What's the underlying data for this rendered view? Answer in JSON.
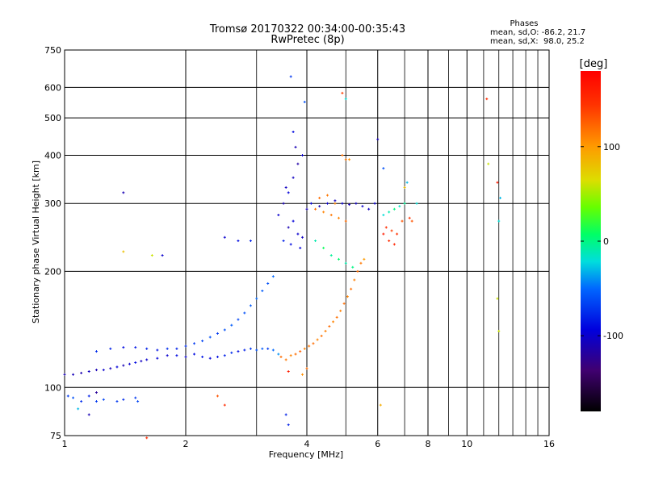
{
  "chart_data": {
    "type": "scatter",
    "title": "Tromsø 20170322 00:34:00-00:35:43",
    "subtitle": "RwPretec (8p)",
    "stats": {
      "heading": "Phases",
      "line1": "mean, sd,O: -86.2, 21.7",
      "line2": "mean, sd,X:  98.0, 25.2"
    },
    "xlabel": "Frequency [MHz]",
    "ylabel": "Stationary phase Virtual Height [km]",
    "x_scale": "log",
    "y_scale": "log",
    "xlim": [
      1,
      16
    ],
    "ylim": [
      75,
      750
    ],
    "xticks": [
      1,
      2,
      4,
      6,
      8,
      10,
      16
    ],
    "xtick_labels": [
      "1",
      "2",
      "4",
      "6",
      "8",
      "10",
      "16"
    ],
    "x_minor_ticks": [
      3,
      5,
      7,
      9,
      11,
      12,
      13,
      14,
      15
    ],
    "yticks": [
      75,
      100,
      200,
      300,
      400,
      500,
      600,
      750
    ],
    "ytick_labels": [
      "75",
      "100",
      "200",
      "300",
      "400",
      "500",
      "600",
      "750"
    ],
    "grid": true,
    "colorbar": {
      "label": "[deg]",
      "range": [
        -180,
        180
      ],
      "ticks": [
        100,
        0,
        -100
      ],
      "tick_labels": [
        "100",
        "0",
        "-100"
      ]
    },
    "series": [
      {
        "points": [
          [
            1.0,
            108,
            -110
          ],
          [
            1.05,
            108,
            -108
          ],
          [
            1.1,
            109,
            -112
          ],
          [
            1.15,
            110,
            -105
          ],
          [
            1.2,
            111,
            -110
          ],
          [
            1.25,
            111,
            -100
          ],
          [
            1.3,
            112,
            -108
          ],
          [
            1.35,
            113,
            -95
          ],
          [
            1.4,
            114,
            -110
          ],
          [
            1.45,
            115,
            -100
          ],
          [
            1.5,
            116,
            -90
          ],
          [
            1.55,
            117,
            -105
          ],
          [
            1.6,
            118,
            -100
          ],
          [
            1.7,
            119,
            -95
          ],
          [
            1.8,
            121,
            -100
          ],
          [
            1.9,
            121,
            -90
          ],
          [
            2.0,
            120,
            -100
          ],
          [
            2.1,
            122,
            -90
          ],
          [
            2.2,
            120,
            -85
          ],
          [
            2.3,
            119,
            -95
          ],
          [
            2.4,
            120,
            -88
          ],
          [
            2.5,
            121,
            -80
          ],
          [
            2.6,
            123,
            -75
          ],
          [
            2.7,
            124,
            -90
          ],
          [
            2.8,
            125,
            -80
          ],
          [
            2.9,
            126,
            -70
          ],
          [
            3.0,
            125,
            -60
          ],
          [
            3.1,
            126,
            -55
          ],
          [
            3.2,
            126,
            -70
          ],
          [
            3.3,
            125,
            -50
          ],
          [
            3.4,
            122,
            -40
          ],
          [
            1.2,
            124,
            -75
          ],
          [
            1.3,
            126,
            -80
          ],
          [
            1.4,
            127,
            -90
          ],
          [
            1.5,
            127,
            -85
          ],
          [
            1.6,
            126,
            -80
          ],
          [
            1.7,
            125,
            -85
          ],
          [
            1.8,
            126,
            -75
          ],
          [
            1.9,
            126,
            -80
          ],
          [
            2.0,
            128,
            -75
          ],
          [
            2.1,
            130,
            -70
          ],
          [
            2.2,
            132,
            -65
          ],
          [
            2.3,
            135,
            -60
          ],
          [
            2.4,
            138,
            -70
          ],
          [
            2.5,
            141,
            -60
          ],
          [
            2.6,
            145,
            -55
          ],
          [
            2.7,
            150,
            -65
          ],
          [
            2.8,
            156,
            -60
          ],
          [
            2.9,
            163,
            -55
          ],
          [
            3.0,
            170,
            -50
          ],
          [
            3.1,
            178,
            -55
          ],
          [
            3.2,
            186,
            -60
          ],
          [
            3.3,
            194,
            -50
          ],
          [
            1.02,
            95,
            -70
          ],
          [
            1.05,
            94,
            -60
          ],
          [
            1.1,
            92,
            -75
          ],
          [
            1.15,
            95,
            -80
          ],
          [
            1.2,
            92,
            -70
          ],
          [
            1.25,
            93,
            -65
          ],
          [
            1.35,
            92,
            -70
          ],
          [
            1.4,
            93,
            -75
          ],
          [
            1.5,
            94,
            -70
          ],
          [
            1.52,
            92,
            -65
          ],
          [
            1.15,
            85,
            -110
          ],
          [
            1.08,
            88,
            -30
          ],
          [
            1.6,
            74,
            150
          ],
          [
            2.5,
            90,
            150
          ],
          [
            1.2,
            97,
            -120
          ],
          [
            3.45,
            120,
            120
          ],
          [
            3.55,
            118,
            115
          ],
          [
            3.65,
            121,
            110
          ],
          [
            3.75,
            122,
            120
          ],
          [
            3.85,
            124,
            125
          ],
          [
            3.95,
            126,
            110
          ],
          [
            4.05,
            128,
            115
          ],
          [
            4.15,
            130,
            120
          ],
          [
            4.25,
            133,
            110
          ],
          [
            4.35,
            136,
            118
          ],
          [
            4.45,
            140,
            112
          ],
          [
            4.55,
            144,
            120
          ],
          [
            4.65,
            148,
            110
          ],
          [
            4.75,
            152,
            118
          ],
          [
            4.85,
            158,
            112
          ],
          [
            4.95,
            165,
            120
          ],
          [
            5.05,
            172,
            110
          ],
          [
            5.15,
            180,
            118
          ],
          [
            5.25,
            190,
            112
          ],
          [
            5.35,
            200,
            120
          ],
          [
            5.45,
            210,
            115
          ],
          [
            5.55,
            215,
            100
          ],
          [
            3.9,
            108,
            105
          ],
          [
            4.0,
            112,
            120
          ],
          [
            3.4,
            280,
            -100
          ],
          [
            3.5,
            300,
            -110
          ],
          [
            3.6,
            320,
            -95
          ],
          [
            3.7,
            350,
            -105
          ],
          [
            3.8,
            380,
            -115
          ],
          [
            3.9,
            400,
            -100
          ],
          [
            3.6,
            260,
            -110
          ],
          [
            3.7,
            270,
            -95
          ],
          [
            3.8,
            250,
            -100
          ],
          [
            3.9,
            245,
            -105
          ],
          [
            4.0,
            290,
            -110
          ],
          [
            4.1,
            300,
            -95
          ],
          [
            4.3,
            295,
            -110
          ],
          [
            4.5,
            300,
            -100
          ],
          [
            4.7,
            305,
            -105
          ],
          [
            4.9,
            300,
            -100
          ],
          [
            5.1,
            298,
            -110
          ],
          [
            5.3,
            300,
            -105
          ],
          [
            5.5,
            295,
            -100
          ],
          [
            5.7,
            290,
            -105
          ],
          [
            5.9,
            300,
            -100
          ],
          [
            3.5,
            240,
            -80
          ],
          [
            3.65,
            235,
            -90
          ],
          [
            3.85,
            230,
            -95
          ],
          [
            3.55,
            330,
            -105
          ],
          [
            3.75,
            420,
            -110
          ],
          [
            3.7,
            460,
            -90
          ],
          [
            3.65,
            640,
            -70
          ],
          [
            3.95,
            550,
            -60
          ],
          [
            3.6,
            80,
            -80
          ],
          [
            3.55,
            85,
            -80
          ],
          [
            4.2,
            290,
            120
          ],
          [
            4.4,
            285,
            110
          ],
          [
            4.6,
            280,
            115
          ],
          [
            4.8,
            275,
            110
          ],
          [
            5.0,
            270,
            120
          ],
          [
            4.3,
            310,
            120
          ],
          [
            4.5,
            315,
            115
          ],
          [
            4.7,
            300,
            110
          ],
          [
            5.0,
            390,
            115
          ],
          [
            5.1,
            390,
            105
          ],
          [
            4.9,
            400,
            118
          ],
          [
            4.2,
            240,
            -10
          ],
          [
            4.4,
            230,
            10
          ],
          [
            4.6,
            220,
            -5
          ],
          [
            4.8,
            215,
            5
          ],
          [
            5.0,
            210,
            -10
          ],
          [
            5.2,
            205,
            0
          ],
          [
            4.9,
            580,
            140
          ],
          [
            5.0,
            560,
            -20
          ],
          [
            6.2,
            280,
            -20
          ],
          [
            6.4,
            285,
            -10
          ],
          [
            6.6,
            290,
            0
          ],
          [
            6.8,
            295,
            -15
          ],
          [
            7.0,
            300,
            -5
          ],
          [
            6.3,
            260,
            150
          ],
          [
            6.5,
            255,
            140
          ],
          [
            6.7,
            250,
            145
          ],
          [
            6.9,
            270,
            130
          ],
          [
            7.2,
            275,
            145
          ],
          [
            6.2,
            250,
            160
          ],
          [
            6.4,
            240,
            150
          ],
          [
            6.6,
            235,
            155
          ],
          [
            7.5,
            300,
            -20
          ],
          [
            7.3,
            270,
            130
          ],
          [
            6.0,
            440,
            -110
          ],
          [
            6.2,
            370,
            -60
          ],
          [
            7.0,
            330,
            80
          ],
          [
            7.1,
            340,
            -30
          ],
          [
            11.2,
            560,
            150
          ],
          [
            11.3,
            380,
            60
          ],
          [
            11.9,
            340,
            160
          ],
          [
            12.0,
            270,
            -20
          ],
          [
            12.1,
            310,
            -30
          ],
          [
            11.9,
            170,
            60
          ],
          [
            12.0,
            140,
            60
          ],
          [
            6.1,
            90,
            90
          ],
          [
            3.6,
            110,
            160
          ],
          [
            2.9,
            240,
            -80
          ],
          [
            2.7,
            240,
            -90
          ],
          [
            2.5,
            245,
            -100
          ],
          [
            1.4,
            320,
            -110
          ],
          [
            1.75,
            220,
            -100
          ],
          [
            1.65,
            220,
            60
          ],
          [
            1.4,
            225,
            80
          ],
          [
            2.4,
            95,
            130
          ]
        ]
      }
    ]
  }
}
